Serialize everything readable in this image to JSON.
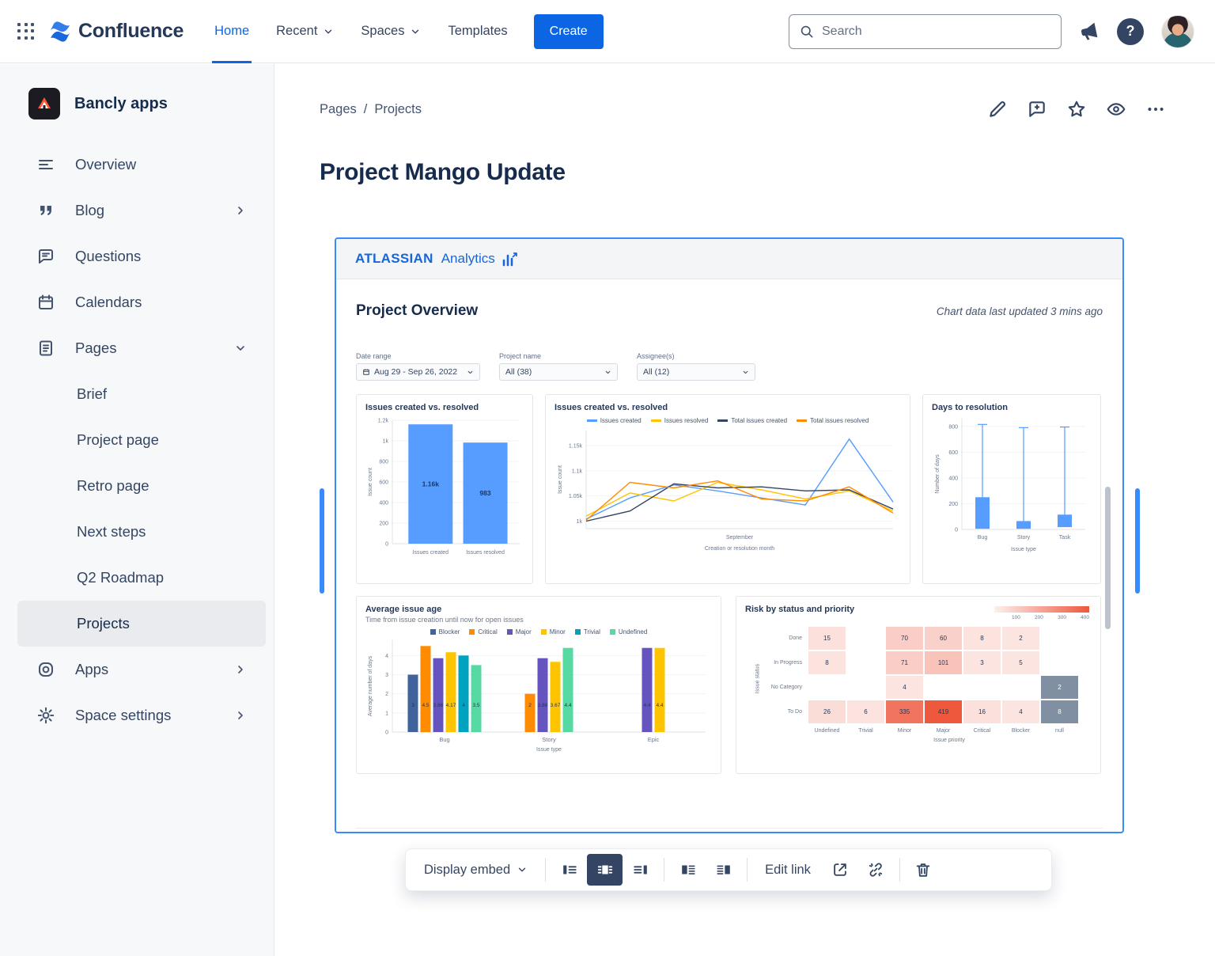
{
  "topbar": {
    "product_name": "Confluence",
    "nav": [
      {
        "label": "Home",
        "active": true
      },
      {
        "label": "Recent",
        "chevron": true
      },
      {
        "label": "Spaces",
        "chevron": true
      },
      {
        "label": "Templates"
      }
    ],
    "create_label": "Create",
    "search_placeholder": "Search"
  },
  "sidebar": {
    "space_name": "Bancly apps",
    "items": [
      {
        "label": "Overview"
      },
      {
        "label": "Blog",
        "chevron": "right"
      },
      {
        "label": "Questions"
      },
      {
        "label": "Calendars"
      },
      {
        "label": "Pages",
        "chevron": "down"
      },
      {
        "label": "Apps",
        "chevron": "right"
      },
      {
        "label": "Space settings",
        "chevron": "right"
      }
    ],
    "pages_children": [
      {
        "label": "Brief"
      },
      {
        "label": "Project page"
      },
      {
        "label": "Retro page"
      },
      {
        "label": "Next steps"
      },
      {
        "label": "Q2 Roadmap"
      },
      {
        "label": "Projects",
        "selected": true
      }
    ]
  },
  "main": {
    "breadcrumb": {
      "items": [
        "Pages",
        "Projects"
      ],
      "separator": "/"
    },
    "title": "Project Mango Update"
  },
  "embed": {
    "brand": "ATLASSIAN",
    "product": "Analytics",
    "heading": "Project Overview",
    "updated_note": "Chart data last updated 3 mins ago",
    "filters": [
      {
        "label": "Date range",
        "value": "Aug 29 - Sep 26, 2022"
      },
      {
        "label": "Project name",
        "value": "All (38)"
      },
      {
        "label": "Assignee(s)",
        "value": "All (12)"
      }
    ]
  },
  "toolbar": {
    "display_label": "Display embed",
    "edit_link_label": "Edit link"
  },
  "icons": {
    "app-grid": "9-dot-grid",
    "search": "magnifier",
    "notifications": "megaphone",
    "help": "question-mark",
    "profile": "avatar-photo",
    "edit": "pencil",
    "comments": "speech-bubble",
    "favorite": "star",
    "watch": "eye",
    "more": "ellipsis",
    "align-left": "block-left",
    "align-center": "block-center",
    "align-right": "block-right",
    "wrap-left": "two-column-left",
    "wrap-right": "two-column-right",
    "open-link": "external-arrow",
    "unlink": "broken-chain",
    "remove": "trash-can"
  },
  "colors": {
    "accent": "#0c66e4",
    "embed_border": "#388bff",
    "bar_blue": "#579dff",
    "toolbar_active": "#344563"
  },
  "chart_data": [
    {
      "type": "bar",
      "title": "Issues created vs. resolved",
      "ylabel": "Issue count",
      "ylim": [
        0,
        1200
      ],
      "yticks": [
        {
          "v": 0,
          "label": "0"
        },
        {
          "v": 200,
          "label": "200"
        },
        {
          "v": 400,
          "label": "400"
        },
        {
          "v": 600,
          "label": "600"
        },
        {
          "v": 800,
          "label": "800"
        },
        {
          "v": 1000,
          "label": "1k"
        },
        {
          "v": 1200,
          "label": "1.2k"
        }
      ],
      "categories": [
        "Issues created",
        "Issues resolved"
      ],
      "values": [
        1160,
        983
      ],
      "value_labels": [
        "1.16k",
        "983"
      ],
      "color": "#579dff"
    },
    {
      "type": "line",
      "title": "Issues created vs. resolved",
      "ylabel": "Issue count",
      "xlabel": "Creation or resolution month",
      "x_tick_label": "September",
      "ylim": [
        985,
        1180
      ],
      "yticks": [
        {
          "v": 1000,
          "label": "1k"
        },
        {
          "v": 1050,
          "label": "1.05k"
        },
        {
          "v": 1100,
          "label": "1.1k"
        },
        {
          "v": 1150,
          "label": "1.15k"
        }
      ],
      "series": [
        {
          "name": "Issues created",
          "color": "#579dff",
          "values": [
            1004,
            1046,
            1072,
            1060,
            1046,
            1032,
            1163,
            1038
          ]
        },
        {
          "name": "Issues resolved",
          "color": "#ffc400",
          "values": [
            1010,
            1056,
            1040,
            1077,
            1062,
            1044,
            1060,
            1020
          ]
        },
        {
          "name": "Total issues created",
          "color": "#344563",
          "values": [
            1000,
            1020,
            1074,
            1066,
            1068,
            1060,
            1062,
            1024
          ]
        },
        {
          "name": "Total issues resolved",
          "color": "#ff8b00",
          "values": [
            1002,
            1077,
            1066,
            1080,
            1044,
            1040,
            1068,
            1016
          ]
        }
      ]
    },
    {
      "type": "box",
      "title": "Days to resolution",
      "ylabel": "Number of days",
      "xlabel": "Issue type",
      "ylim": [
        0,
        860
      ],
      "yticks": [
        {
          "v": 0,
          "label": "0"
        },
        {
          "v": 200,
          "label": "200"
        },
        {
          "v": 400,
          "label": "400"
        },
        {
          "v": 600,
          "label": "600"
        },
        {
          "v": 800,
          "label": "800"
        }
      ],
      "categories": [
        "Bug",
        "Story",
        "Task"
      ],
      "boxes": [
        {
          "q1": 5,
          "q3": 250,
          "max": 815
        },
        {
          "q1": 5,
          "q3": 65,
          "max": 790
        },
        {
          "q1": 18,
          "q3": 115,
          "max": 795
        }
      ],
      "color": "#579dff"
    },
    {
      "type": "grouped_bar",
      "title": "Average issue age",
      "subtitle": "Time from issue creation until now for open issues",
      "ylabel": "Average number of days",
      "xlabel": "Issue type",
      "ylim": [
        0,
        4.8
      ],
      "yticks": [
        {
          "v": 0,
          "label": "0"
        },
        {
          "v": 1,
          "label": "1"
        },
        {
          "v": 2,
          "label": "2"
        },
        {
          "v": 3,
          "label": "3"
        },
        {
          "v": 4,
          "label": "4"
        }
      ],
      "categories": [
        "Bug",
        "Story",
        "Epic"
      ],
      "series": [
        {
          "name": "Blocker",
          "color": "#40639c",
          "values": [
            3,
            null,
            null
          ],
          "labels": [
            "3",
            null,
            null
          ]
        },
        {
          "name": "Critical",
          "color": "#ff8b00",
          "values": [
            4.5,
            2,
            null
          ],
          "labels": [
            "4.5",
            "2",
            null
          ]
        },
        {
          "name": "Major",
          "color": "#6554c0",
          "values": [
            3.86,
            3.86,
            4.4
          ],
          "labels": [
            "3.86",
            "3.86",
            "4.4"
          ]
        },
        {
          "name": "Minor",
          "color": "#ffc400",
          "values": [
            4.17,
            3.67,
            4.4
          ],
          "labels": [
            "4.17",
            "3.67",
            "4.4"
          ]
        },
        {
          "name": "Trivial",
          "color": "#00a3bf",
          "values": [
            4,
            null,
            null
          ],
          "labels": [
            "4",
            null,
            null
          ]
        },
        {
          "name": "Undefined",
          "color": "#57d9a3",
          "values": [
            3.5,
            4.4,
            null
          ],
          "labels": [
            "3.5",
            "4.4",
            null
          ]
        }
      ]
    },
    {
      "type": "heatmap",
      "title": "Risk by status and priority",
      "ylabel": "Issue status",
      "xlabel": "Issue priority",
      "rows": [
        "Done",
        "In Progress",
        "No Category",
        "To Do"
      ],
      "cols": [
        "Undefined",
        "Trivial",
        "Minor",
        "Major",
        "Critical",
        "Blocker",
        "null"
      ],
      "cells": [
        [
          15,
          null,
          70,
          60,
          8,
          2,
          null
        ],
        [
          8,
          null,
          71,
          101,
          3,
          5,
          null
        ],
        [
          null,
          null,
          4,
          null,
          null,
          null,
          2
        ],
        [
          26,
          6,
          335,
          419,
          16,
          4,
          8
        ]
      ],
      "scale_ticks": [
        "100",
        "200",
        "300",
        "400"
      ],
      "null_color": "#8090a2"
    }
  ]
}
